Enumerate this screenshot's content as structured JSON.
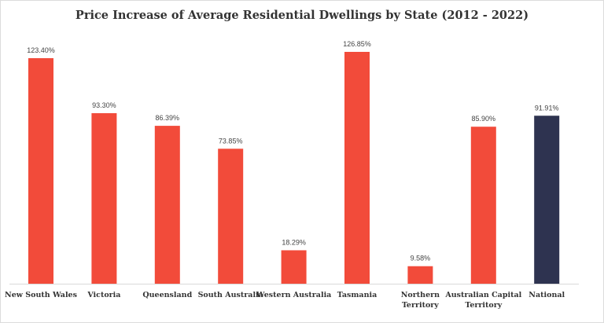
{
  "chart_data": {
    "type": "bar",
    "title": "Price Increase of Average Residential Dwellings by State (2012 - 2022)",
    "xlabel": "",
    "ylabel": "",
    "categories": [
      [
        "New South Wales"
      ],
      [
        "Victoria"
      ],
      [
        "Queensland"
      ],
      [
        "South Australia"
      ],
      [
        "Western Australia"
      ],
      [
        "Tasmania"
      ],
      [
        "Northern",
        "Territory"
      ],
      [
        "Australian Capital",
        "Territory"
      ],
      [
        "National"
      ]
    ],
    "values": [
      123.4,
      93.3,
      86.39,
      73.85,
      18.29,
      126.85,
      9.58,
      85.9,
      91.91
    ],
    "data_labels": [
      "123.40%",
      "93.30%",
      "86.39%",
      "73.85%",
      "18.29%",
      "126.85%",
      "9.58%",
      "85.90%",
      "91.91%"
    ],
    "colors": [
      "#f24b3a",
      "#f24b3a",
      "#f24b3a",
      "#f24b3a",
      "#f24b3a",
      "#f24b3a",
      "#f24b3a",
      "#f24b3a",
      "#2e3350"
    ],
    "ylim": [
      0,
      126.85
    ],
    "grid": false,
    "legend": "none"
  }
}
